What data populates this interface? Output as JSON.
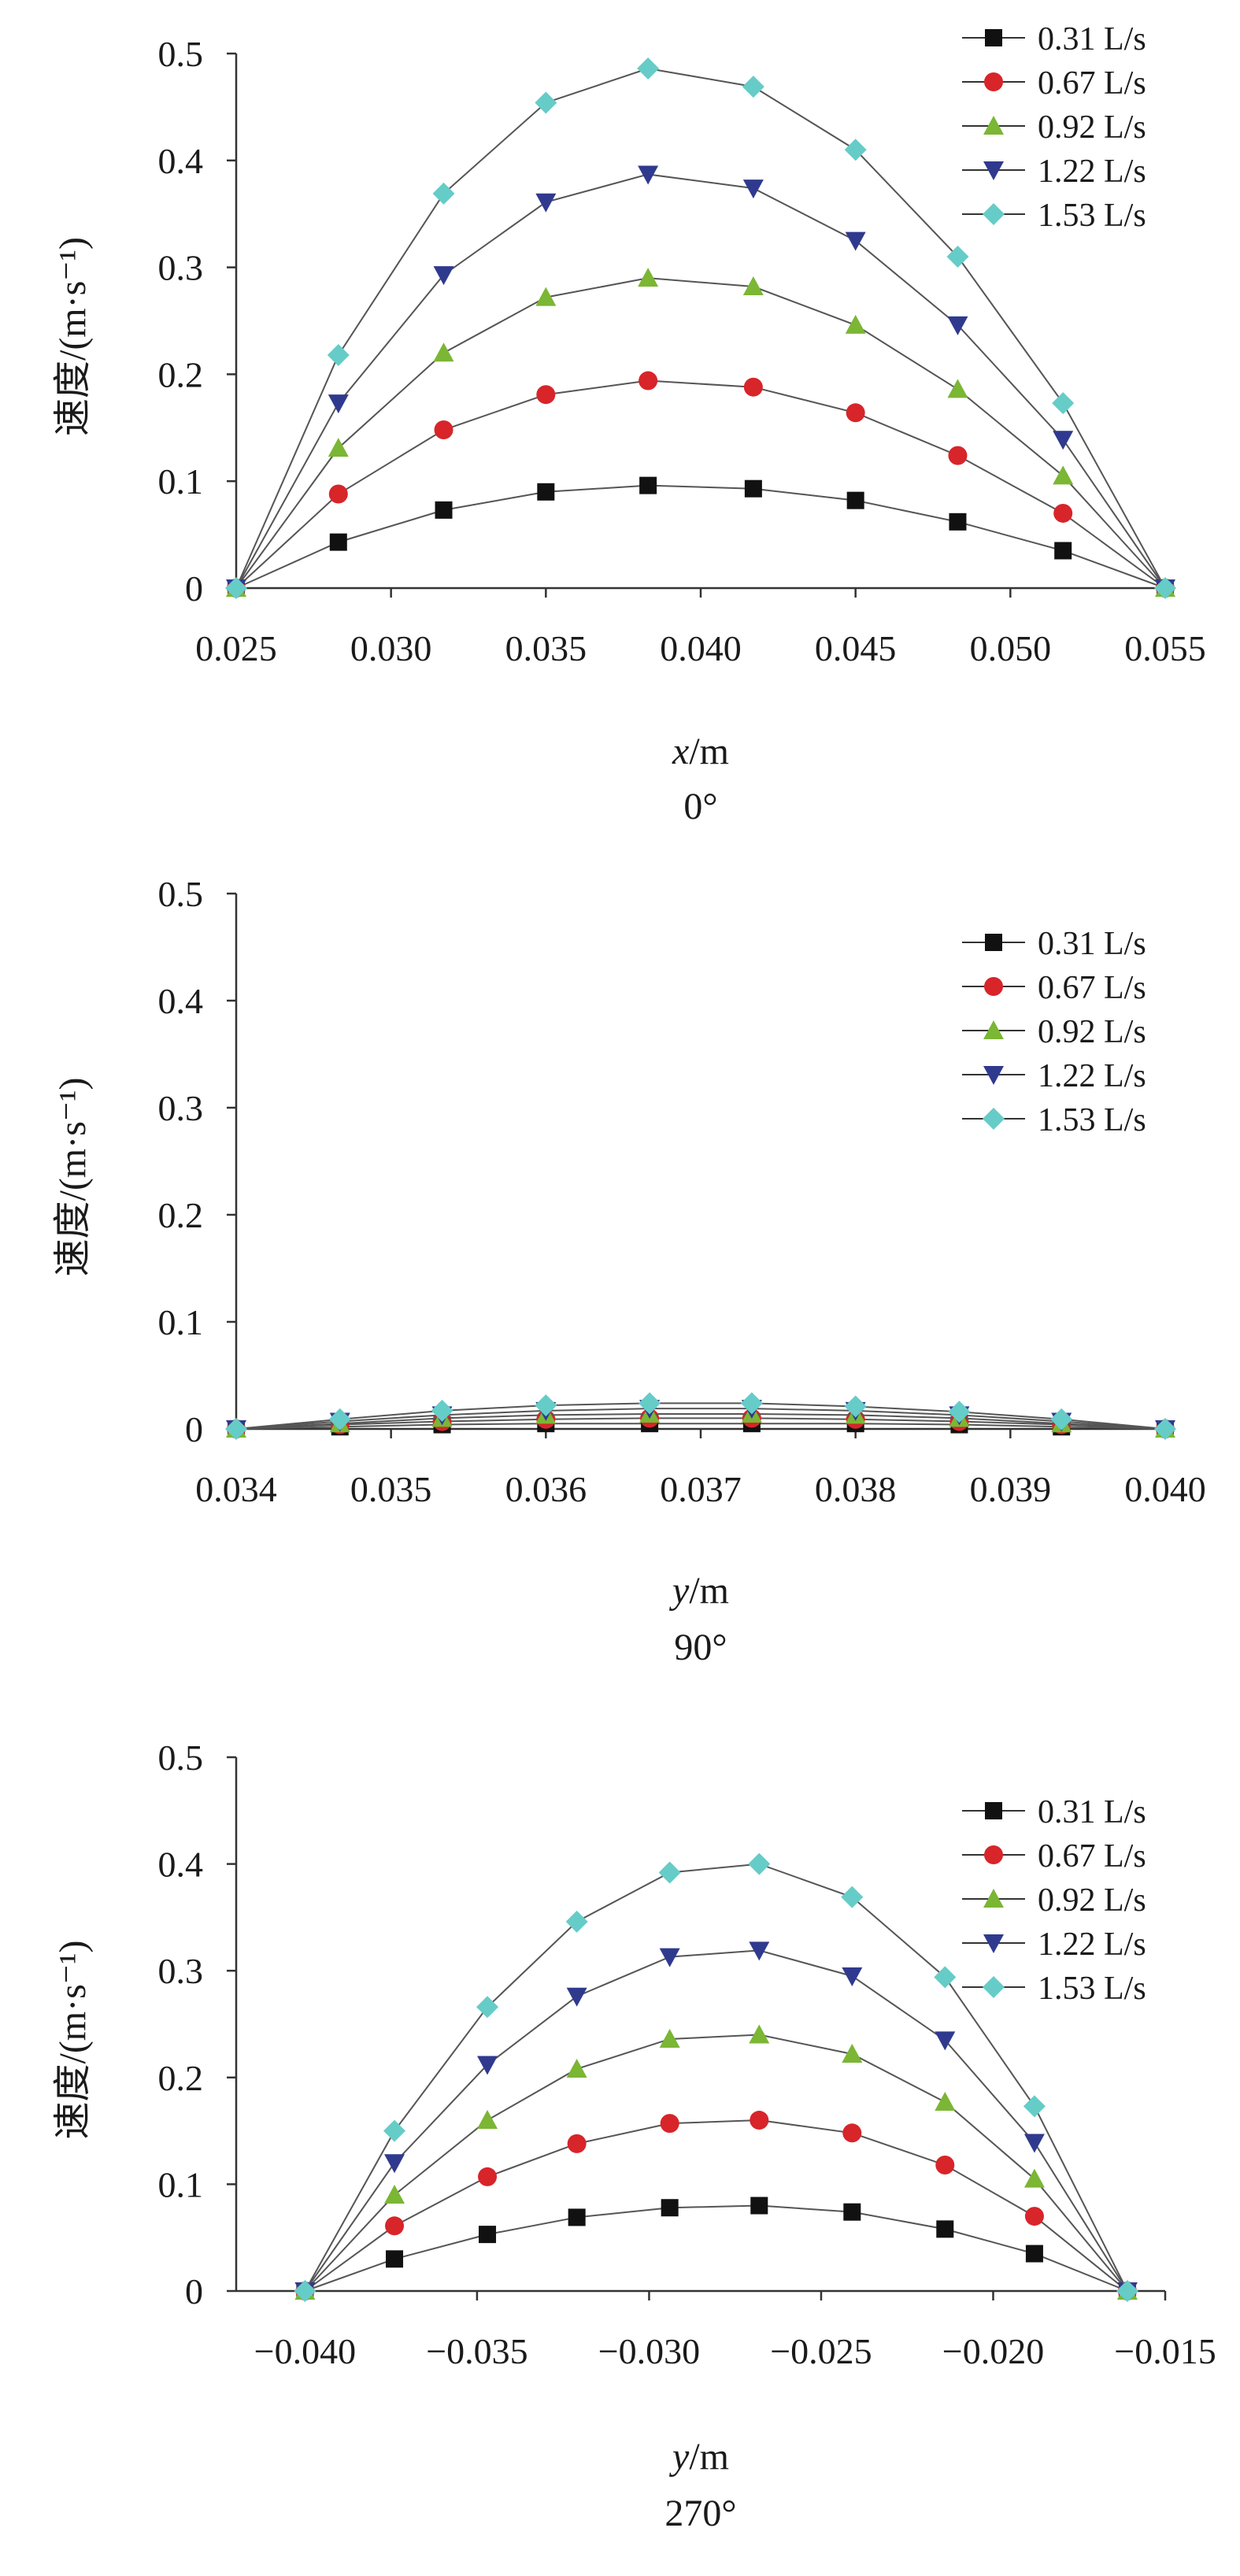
{
  "chart_data": [
    {
      "type": "line",
      "caption": "0°",
      "xlabel": "x/m",
      "ylabel": "速度/(m·s⁻¹)",
      "xlim": [
        0.025,
        0.055
      ],
      "ylim": [
        0,
        0.5
      ],
      "x_ticks": [
        "0.025",
        "0.030",
        "0.035",
        "0.040",
        "0.045",
        "0.050",
        "0.055"
      ],
      "y_ticks": [
        "0",
        "0.1",
        "0.2",
        "0.3",
        "0.4",
        "0.5"
      ],
      "legend_position": "top-right",
      "x": [
        0.025,
        0.0283,
        0.0317,
        0.035,
        0.0383,
        0.0417,
        0.045,
        0.0483,
        0.0517,
        0.055
      ],
      "series": [
        {
          "name": "0.31 L/s",
          "color": "#111111",
          "marker": "square",
          "values": [
            0,
            0.043,
            0.073,
            0.09,
            0.096,
            0.093,
            0.082,
            0.062,
            0.035,
            0
          ]
        },
        {
          "name": "0.67 L/s",
          "color": "#d7252a",
          "marker": "circle",
          "values": [
            0,
            0.088,
            0.148,
            0.181,
            0.194,
            0.188,
            0.164,
            0.124,
            0.07,
            0
          ]
        },
        {
          "name": "0.92 L/s",
          "color": "#7bb634",
          "marker": "triangle-up",
          "values": [
            0,
            0.131,
            0.22,
            0.272,
            0.29,
            0.282,
            0.246,
            0.186,
            0.105,
            0
          ]
        },
        {
          "name": "1.22 L/s",
          "color": "#2f3a8f",
          "marker": "triangle-down",
          "values": [
            0,
            0.173,
            0.293,
            0.361,
            0.387,
            0.374,
            0.325,
            0.246,
            0.139,
            0
          ]
        },
        {
          "name": "1.53 L/s",
          "color": "#66ccc8",
          "marker": "diamond",
          "values": [
            0,
            0.218,
            0.369,
            0.454,
            0.486,
            0.469,
            0.41,
            0.31,
            0.173,
            0
          ]
        }
      ]
    },
    {
      "type": "line",
      "caption": "90°",
      "xlabel": "y/m",
      "ylabel": "速度/(m·s⁻¹)",
      "xlim": [
        0.034,
        0.04
      ],
      "ylim": [
        0,
        0.5
      ],
      "x_ticks": [
        "0.034",
        "0.035",
        "0.036",
        "0.037",
        "0.038",
        "0.039",
        "0.040"
      ],
      "y_ticks": [
        "0",
        "0.1",
        "0.2",
        "0.3",
        "0.4",
        "0.5"
      ],
      "legend_position": "top-right",
      "x": [
        0.034,
        0.03467,
        0.03533,
        0.036,
        0.03667,
        0.03733,
        0.038,
        0.03867,
        0.03933,
        0.04
      ],
      "series": [
        {
          "name": "0.31 L/s",
          "color": "#111111",
          "marker": "square",
          "values": [
            0,
            0.002,
            0.004,
            0.005,
            0.005,
            0.005,
            0.005,
            0.004,
            0.002,
            0
          ]
        },
        {
          "name": "0.67 L/s",
          "color": "#d7252a",
          "marker": "circle",
          "values": [
            0,
            0.004,
            0.007,
            0.009,
            0.01,
            0.01,
            0.009,
            0.007,
            0.004,
            0
          ]
        },
        {
          "name": "0.92 L/s",
          "color": "#7bb634",
          "marker": "triangle-up",
          "values": [
            0,
            0.005,
            0.01,
            0.013,
            0.014,
            0.014,
            0.013,
            0.01,
            0.005,
            0
          ]
        },
        {
          "name": "1.22 L/s",
          "color": "#2f3a8f",
          "marker": "triangle-down",
          "values": [
            0,
            0.007,
            0.013,
            0.017,
            0.019,
            0.019,
            0.017,
            0.013,
            0.007,
            0
          ]
        },
        {
          "name": "1.53 L/s",
          "color": "#66ccc8",
          "marker": "diamond",
          "values": [
            0,
            0.009,
            0.017,
            0.022,
            0.024,
            0.024,
            0.021,
            0.016,
            0.009,
            0
          ]
        }
      ]
    },
    {
      "type": "line",
      "caption": "270°",
      "xlabel": "y/m",
      "ylabel": "速度/(m·s⁻¹)",
      "xlim": [
        -0.042,
        -0.015
      ],
      "ylim": [
        0,
        0.5
      ],
      "x_ticks": [
        "−0.040",
        "−0.035",
        "−0.030",
        "−0.025",
        "−0.020",
        "−0.015"
      ],
      "x_tick_values": [
        -0.04,
        -0.035,
        -0.03,
        -0.025,
        -0.02,
        -0.015
      ],
      "y_ticks": [
        "0",
        "0.1",
        "0.2",
        "0.3",
        "0.4",
        "0.5"
      ],
      "legend_position": "top-right",
      "x": [
        -0.04,
        -0.0374,
        -0.0347,
        -0.0321,
        -0.0294,
        -0.0268,
        -0.0241,
        -0.0214,
        -0.0188,
        -0.0161
      ],
      "series": [
        {
          "name": "0.31 L/s",
          "color": "#111111",
          "marker": "square",
          "values": [
            0,
            0.03,
            0.053,
            0.069,
            0.078,
            0.08,
            0.074,
            0.058,
            0.035,
            0
          ]
        },
        {
          "name": "0.67 L/s",
          "color": "#d7252a",
          "marker": "circle",
          "values": [
            0,
            0.061,
            0.107,
            0.138,
            0.157,
            0.16,
            0.148,
            0.118,
            0.07,
            0
          ]
        },
        {
          "name": "0.92 L/s",
          "color": "#7bb634",
          "marker": "triangle-up",
          "values": [
            0,
            0.09,
            0.16,
            0.208,
            0.236,
            0.24,
            0.222,
            0.177,
            0.105,
            0
          ]
        },
        {
          "name": "1.22 L/s",
          "color": "#2f3a8f",
          "marker": "triangle-down",
          "values": [
            0,
            0.12,
            0.212,
            0.276,
            0.313,
            0.319,
            0.295,
            0.235,
            0.139,
            0
          ]
        },
        {
          "name": "1.53 L/s",
          "color": "#66ccc8",
          "marker": "diamond",
          "values": [
            0,
            0.15,
            0.266,
            0.346,
            0.392,
            0.4,
            0.369,
            0.294,
            0.173,
            0
          ]
        }
      ]
    }
  ]
}
